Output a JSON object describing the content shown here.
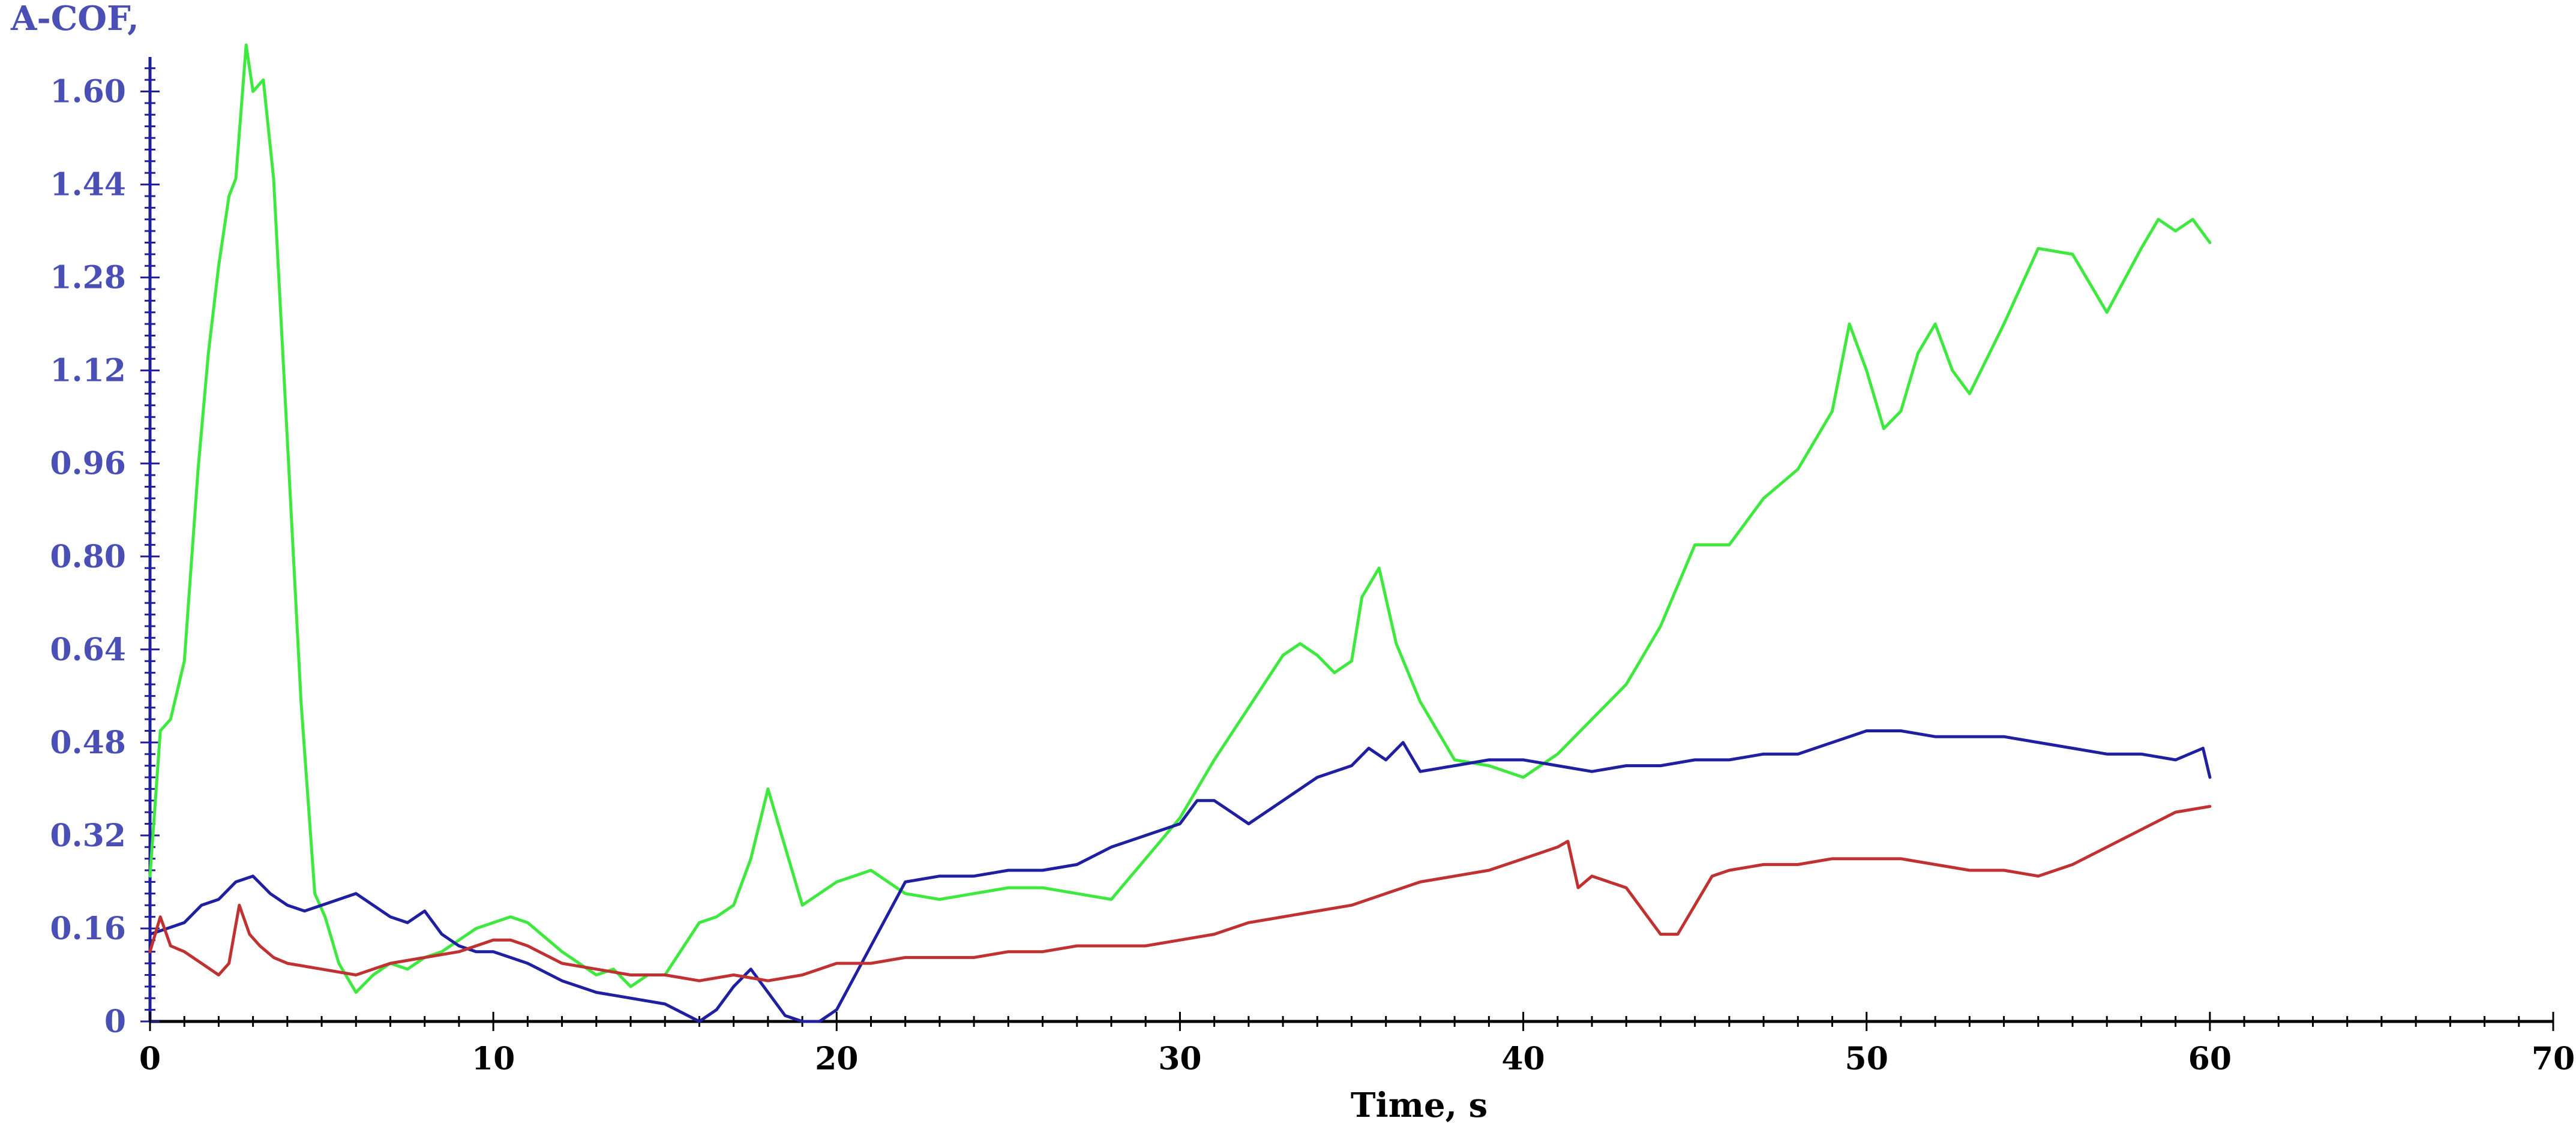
{
  "chart_data": {
    "type": "line",
    "title": "",
    "xlabel": "Time, s",
    "ylabel": "A-COF,",
    "xlim": [
      0,
      70
    ],
    "ylim": [
      0,
      1.68
    ],
    "x_ticks": [
      "0",
      "10",
      "20",
      "30",
      "40",
      "50",
      "60",
      "70"
    ],
    "y_ticks": [
      "0",
      "0.16",
      "0.32",
      "0.48",
      "0.64",
      "0.80",
      "0.96",
      "1.12",
      "1.28",
      "1.44",
      "1.60"
    ],
    "grid": false,
    "legend": "none",
    "colors": {
      "y_axis": "#1f1f9e",
      "x_axis": "#000000",
      "y_text": "#4a4fb5",
      "green": "#3ee83e",
      "blue": "#1f1fa0",
      "red": "#c03232"
    },
    "series": [
      {
        "color": "#3ee83e",
        "x": [
          0,
          0.3,
          0.6,
          1.0,
          1.4,
          1.7,
          2.0,
          2.3,
          2.5,
          2.8,
          3.0,
          3.3,
          3.6,
          4.0,
          4.4,
          4.8,
          5.1,
          5.5,
          6.0,
          6.5,
          7.0,
          7.5,
          8.0,
          8.5,
          9.0,
          9.5,
          10.0,
          10.5,
          11.0,
          12.0,
          13.0,
          13.5,
          14.0,
          14.5,
          15.0,
          16.0,
          16.5,
          17.0,
          17.5,
          18.0,
          18.5,
          19.0,
          19.5,
          20.0,
          20.5,
          21.0,
          22.0,
          23.0,
          24.0,
          25.0,
          26.0,
          27.0,
          28.0,
          29.0,
          30.0,
          31.0,
          32.0,
          33.0,
          33.5,
          34.0,
          34.5,
          35.0,
          35.3,
          35.8,
          36.3,
          37.0,
          38.0,
          39.0,
          40.0,
          41.0,
          42.0,
          43.0,
          44.0,
          45.0,
          46.0,
          46.5,
          47.0,
          48.0,
          48.5,
          49.0,
          49.5,
          50.0,
          50.5,
          51.0,
          51.5,
          52.0,
          52.5,
          53.0,
          54.0,
          55.0,
          56.0,
          56.5,
          57.0,
          58.0,
          58.5,
          59.0,
          59.5,
          60.0
        ],
        "y": [
          0.25,
          0.5,
          0.52,
          0.62,
          0.95,
          1.15,
          1.3,
          1.42,
          1.45,
          1.68,
          1.6,
          1.62,
          1.45,
          1.0,
          0.55,
          0.22,
          0.18,
          0.1,
          0.05,
          0.08,
          0.1,
          0.09,
          0.11,
          0.12,
          0.14,
          0.16,
          0.17,
          0.18,
          0.17,
          0.12,
          0.08,
          0.09,
          0.06,
          0.08,
          0.08,
          0.17,
          0.18,
          0.2,
          0.28,
          0.4,
          0.3,
          0.2,
          0.22,
          0.24,
          0.25,
          0.26,
          0.22,
          0.21,
          0.22,
          0.23,
          0.23,
          0.22,
          0.21,
          0.28,
          0.35,
          0.45,
          0.54,
          0.63,
          0.65,
          0.63,
          0.6,
          0.62,
          0.73,
          0.78,
          0.65,
          0.55,
          0.45,
          0.44,
          0.42,
          0.46,
          0.52,
          0.58,
          0.68,
          0.82,
          0.82,
          0.86,
          0.9,
          0.95,
          1.0,
          1.05,
          1.2,
          1.12,
          1.02,
          1.05,
          1.15,
          1.2,
          1.12,
          1.08,
          1.2,
          1.33,
          1.32,
          1.27,
          1.22,
          1.33,
          1.38,
          1.36,
          1.38,
          1.34
        ]
      },
      {
        "color": "#1f1fa0",
        "x": [
          0,
          0.5,
          1.0,
          1.5,
          2.0,
          2.5,
          3.0,
          3.5,
          4.0,
          4.5,
          5.0,
          5.5,
          6.0,
          6.5,
          7.0,
          7.5,
          8.0,
          8.5,
          9.0,
          9.5,
          10.0,
          10.5,
          11.0,
          12.0,
          13.0,
          14.0,
          15.0,
          16.0,
          16.5,
          17.0,
          17.5,
          18.0,
          18.5,
          19.0,
          19.5,
          20.0,
          21.0,
          22.0,
          23.0,
          24.0,
          25.0,
          26.0,
          27.0,
          28.0,
          29.0,
          30.0,
          30.5,
          31.0,
          31.5,
          32.0,
          33.0,
          34.0,
          35.0,
          35.5,
          36.0,
          36.5,
          37.0,
          38.0,
          39.0,
          40.0,
          41.0,
          42.0,
          43.0,
          44.0,
          45.0,
          46.0,
          47.0,
          48.0,
          49.0,
          50.0,
          51.0,
          52.0,
          53.0,
          54.0,
          55.0,
          56.0,
          57.0,
          58.0,
          59.0,
          59.8,
          60.0
        ],
        "y": [
          0.15,
          0.16,
          0.17,
          0.2,
          0.21,
          0.24,
          0.25,
          0.22,
          0.2,
          0.19,
          0.2,
          0.21,
          0.22,
          0.2,
          0.18,
          0.17,
          0.19,
          0.15,
          0.13,
          0.12,
          0.12,
          0.11,
          0.1,
          0.07,
          0.05,
          0.04,
          0.03,
          0.0,
          0.02,
          0.06,
          0.09,
          0.05,
          0.01,
          0.0,
          0.0,
          0.02,
          0.13,
          0.24,
          0.25,
          0.25,
          0.26,
          0.26,
          0.27,
          0.3,
          0.32,
          0.34,
          0.38,
          0.38,
          0.36,
          0.34,
          0.38,
          0.42,
          0.44,
          0.47,
          0.45,
          0.48,
          0.43,
          0.44,
          0.45,
          0.45,
          0.44,
          0.43,
          0.44,
          0.44,
          0.45,
          0.45,
          0.46,
          0.46,
          0.48,
          0.5,
          0.5,
          0.49,
          0.49,
          0.49,
          0.48,
          0.47,
          0.46,
          0.46,
          0.45,
          0.47,
          0.42
        ]
      },
      {
        "color": "#c03232",
        "x": [
          0,
          0.3,
          0.6,
          1.0,
          1.5,
          2.0,
          2.3,
          2.6,
          2.9,
          3.2,
          3.6,
          4.0,
          5.0,
          6.0,
          7.0,
          8.0,
          9.0,
          10.0,
          10.5,
          11.0,
          12.0,
          13.0,
          14.0,
          15.0,
          16.0,
          17.0,
          18.0,
          19.0,
          20.0,
          21.0,
          22.0,
          23.0,
          24.0,
          25.0,
          26.0,
          27.0,
          28.0,
          29.0,
          30.0,
          31.0,
          32.0,
          33.0,
          34.0,
          35.0,
          36.0,
          37.0,
          38.0,
          39.0,
          40.0,
          41.0,
          41.3,
          41.6,
          42.0,
          43.0,
          43.5,
          44.0,
          44.5,
          45.0,
          45.5,
          46.0,
          47.0,
          48.0,
          49.0,
          50.0,
          51.0,
          52.0,
          53.0,
          54.0,
          55.0,
          56.0,
          57.0,
          58.0,
          59.0,
          60.0
        ],
        "y": [
          0.12,
          0.18,
          0.13,
          0.12,
          0.1,
          0.08,
          0.1,
          0.2,
          0.15,
          0.13,
          0.11,
          0.1,
          0.09,
          0.08,
          0.1,
          0.11,
          0.12,
          0.14,
          0.14,
          0.13,
          0.1,
          0.09,
          0.08,
          0.08,
          0.07,
          0.08,
          0.07,
          0.08,
          0.1,
          0.1,
          0.11,
          0.11,
          0.11,
          0.12,
          0.12,
          0.13,
          0.13,
          0.13,
          0.14,
          0.15,
          0.17,
          0.18,
          0.19,
          0.2,
          0.22,
          0.24,
          0.25,
          0.26,
          0.28,
          0.3,
          0.31,
          0.23,
          0.25,
          0.23,
          0.19,
          0.15,
          0.15,
          0.2,
          0.25,
          0.26,
          0.27,
          0.27,
          0.28,
          0.28,
          0.28,
          0.27,
          0.26,
          0.26,
          0.25,
          0.27,
          0.3,
          0.33,
          0.36,
          0.37
        ]
      }
    ]
  }
}
